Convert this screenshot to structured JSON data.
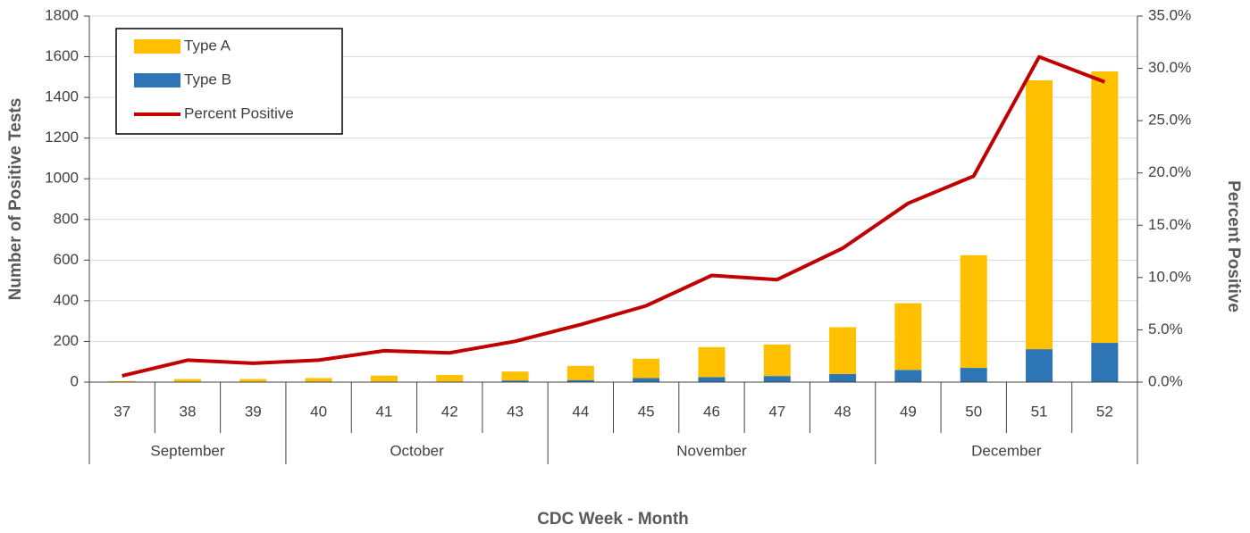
{
  "chart_data": {
    "type": "bar",
    "stacked": true,
    "categories": [
      "37",
      "38",
      "39",
      "40",
      "41",
      "42",
      "43",
      "44",
      "45",
      "46",
      "47",
      "48",
      "49",
      "50",
      "51",
      "52"
    ],
    "months": [
      "September",
      null,
      null,
      "October",
      null,
      null,
      null,
      "November",
      null,
      null,
      null,
      null,
      "December",
      null,
      null,
      null
    ],
    "series": [
      {
        "name": "Type A",
        "color": "#FFC000",
        "values": [
          4,
          13,
          13,
          17,
          29,
          32,
          44,
          70,
          95,
          147,
          155,
          230,
          328,
          554,
          1322,
          1335
        ]
      },
      {
        "name": "Type B",
        "color": "#2E75B6",
        "values": [
          1,
          2,
          2,
          3,
          3,
          3,
          8,
          10,
          20,
          25,
          30,
          40,
          60,
          70,
          162,
          193
        ]
      },
      {
        "name": "Percent Positive",
        "color": "#C00000",
        "type": "line",
        "axis": "y2",
        "values": [
          0.6,
          2.1,
          1.8,
          2.1,
          3.0,
          2.8,
          3.9,
          5.5,
          7.3,
          10.2,
          9.8,
          12.8,
          17.1,
          19.7,
          31.1,
          28.7
        ]
      }
    ],
    "ylim": [
      0,
      1800
    ],
    "yticks": [
      0,
      200,
      400,
      600,
      800,
      1000,
      1200,
      1400,
      1600,
      1800
    ],
    "y2lim": [
      0,
      35
    ],
    "y2ticks": [
      {
        "value": 0,
        "label": "0.0%"
      },
      {
        "value": 5,
        "label": "5.0%"
      },
      {
        "value": 10,
        "label": "10.0%"
      },
      {
        "value": 15,
        "label": "15.0%"
      },
      {
        "value": 20,
        "label": "20.0%"
      },
      {
        "value": 25,
        "label": "25.0%"
      },
      {
        "value": 30,
        "label": "30.0%"
      },
      {
        "value": 35,
        "label": "35.0%"
      }
    ],
    "ylabel": "Number of Positive Tests",
    "y2label": "Percent Positive",
    "xlabel": "CDC Week - Month",
    "grid": true,
    "legend": "upper left"
  }
}
